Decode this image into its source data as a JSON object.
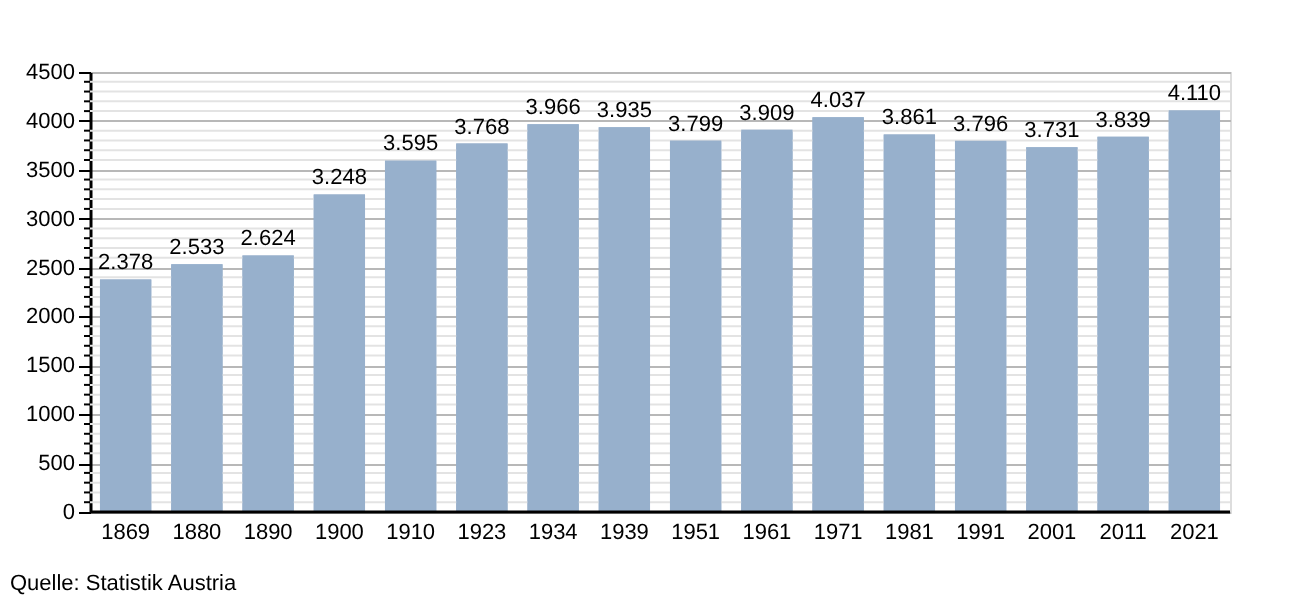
{
  "chart_data": {
    "type": "bar",
    "categories": [
      "1869",
      "1880",
      "1890",
      "1900",
      "1910",
      "1923",
      "1934",
      "1939",
      "1951",
      "1961",
      "1971",
      "1981",
      "1991",
      "2001",
      "2011",
      "2021"
    ],
    "values": [
      2378,
      2533,
      2624,
      3248,
      3595,
      3768,
      3966,
      3935,
      3799,
      3909,
      4037,
      3861,
      3796,
      3731,
      3839,
      4110
    ],
    "value_labels": [
      "2.378",
      "2.533",
      "2.624",
      "3.248",
      "3.595",
      "3.768",
      "3.966",
      "3.935",
      "3.799",
      "3.909",
      "4.037",
      "3.861",
      "3.796",
      "3.731",
      "3.839",
      "4.110"
    ],
    "color": "#97b0cc",
    "ylim": [
      0,
      4500
    ],
    "yticks": [
      0,
      {
        "value": 100,
        "label": null
      },
      {
        "value": 200,
        "label": null
      },
      {
        "value": 300,
        "label": null
      },
      {
        "value": 400,
        "label": null
      },
      500,
      {
        "value": 600,
        "label": null
      },
      {
        "value": 700,
        "label": null
      },
      {
        "value": 800,
        "label": null
      },
      {
        "value": 900,
        "label": null
      },
      1000,
      {
        "value": 1100,
        "label": null
      },
      {
        "value": 1200,
        "label": null
      },
      {
        "value": 1300,
        "label": null
      },
      {
        "value": 1400,
        "label": null
      },
      1500,
      {
        "value": 1600,
        "label": null
      },
      {
        "value": 1700,
        "label": null
      },
      {
        "value": 1800,
        "label": null
      },
      {
        "value": 1900,
        "label": null
      },
      2000,
      {
        "value": 2100,
        "label": null
      },
      {
        "value": 2200,
        "label": null
      },
      {
        "value": 2300,
        "label": null
      },
      {
        "value": 2400,
        "label": null
      },
      2500,
      {
        "value": 2600,
        "label": null
      },
      {
        "value": 2700,
        "label": null
      },
      {
        "value": 2800,
        "label": null
      },
      {
        "value": 2900,
        "label": null
      },
      3000,
      {
        "value": 3100,
        "label": null
      },
      {
        "value": 3200,
        "label": null
      },
      {
        "value": 3300,
        "label": null
      },
      {
        "value": 3400,
        "label": null
      },
      3500,
      {
        "value": 3600,
        "label": null
      },
      {
        "value": 3700,
        "label": null
      },
      {
        "value": 3800,
        "label": null
      },
      {
        "value": 3900,
        "label": null
      },
      4000,
      {
        "value": 4100,
        "label": null
      },
      {
        "value": 4200,
        "label": null
      },
      {
        "value": 4300,
        "label": null
      },
      {
        "value": 4400,
        "label": null
      },
      4500
    ],
    "grid": "y",
    "annotations": [
      "Quelle: Statistik Austria"
    ]
  }
}
